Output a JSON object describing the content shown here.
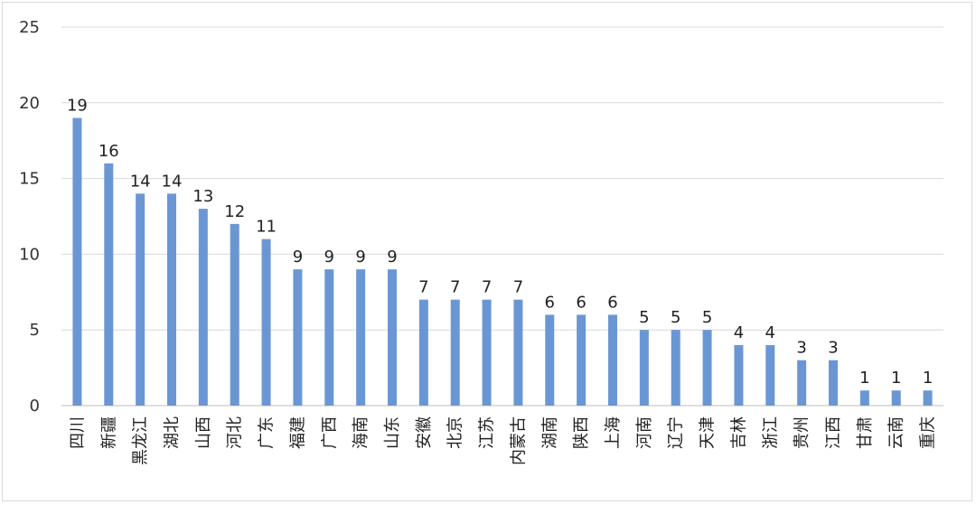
{
  "chart_data": {
    "type": "bar",
    "title": "",
    "xlabel": "",
    "ylabel": "",
    "ylim": [
      0,
      25
    ],
    "yticks": [
      0,
      5,
      10,
      15,
      20,
      25
    ],
    "grid": true,
    "legend": "none",
    "bar_color": "#6a97d4",
    "categories": [
      "四川",
      "新疆",
      "黑龙江",
      "湖北",
      "山西",
      "河北",
      "广东",
      "福建",
      "广西",
      "海南",
      "山东",
      "安徽",
      "北京",
      "江苏",
      "内蒙古",
      "湖南",
      "陕西",
      "上海",
      "河南",
      "辽宁",
      "天津",
      "吉林",
      "浙江",
      "贵州",
      "江西",
      "甘肃",
      "云南",
      "重庆"
    ],
    "values": [
      19,
      16,
      14,
      14,
      13,
      12,
      11,
      9,
      9,
      9,
      9,
      7,
      7,
      7,
      7,
      6,
      6,
      6,
      5,
      5,
      5,
      4,
      4,
      3,
      3,
      1,
      1,
      1
    ]
  }
}
